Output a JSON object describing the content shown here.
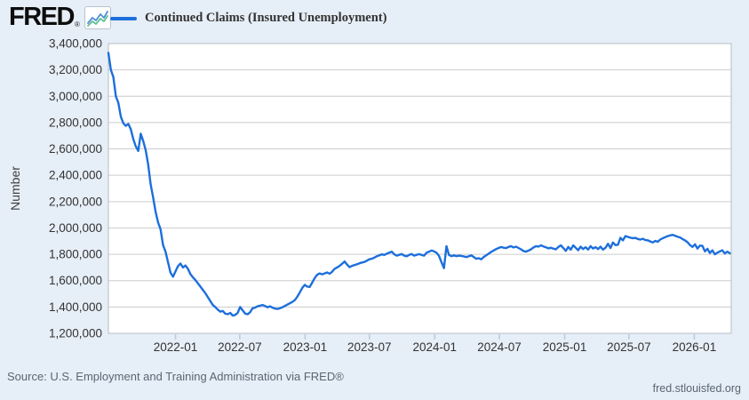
{
  "header": {
    "logo_text": "FRED",
    "registered_mark": "®",
    "logo_icon": "line-chart-icon",
    "legend_label": "Continued Claims (Insured Unemployment)"
  },
  "source": {
    "text": "Source: U.S. Employment and Training Administration via FRED®"
  },
  "footer": {
    "site": "fred.stlouisfed.org"
  },
  "chart_data": {
    "type": "line",
    "title": "Continued Claims (Insured Unemployment)",
    "xlabel": "",
    "ylabel": "Number",
    "ylim": [
      1200000,
      3400000
    ],
    "grid": true,
    "legend_position": "top-left",
    "line_color": "#1d6fdc",
    "plot_background": "#ffffff",
    "page_background": "#e6eef7",
    "frequency": "weekly",
    "x_start": "2021-06-26",
    "x_end": "2026-04-15",
    "y_ticks": [
      {
        "value": 1200000,
        "label": "1,200,000"
      },
      {
        "value": 1400000,
        "label": "1,400,000"
      },
      {
        "value": 1600000,
        "label": "1,600,000"
      },
      {
        "value": 1800000,
        "label": "1,800,000"
      },
      {
        "value": 2000000,
        "label": "2,000,000"
      },
      {
        "value": 2200000,
        "label": "2,200,000"
      },
      {
        "value": 2400000,
        "label": "2,400,000"
      },
      {
        "value": 2600000,
        "label": "2,600,000"
      },
      {
        "value": 2800000,
        "label": "2,800,000"
      },
      {
        "value": 3000000,
        "label": "3,000,000"
      },
      {
        "value": 3200000,
        "label": "3,200,000"
      },
      {
        "value": 3400000,
        "label": "3,400,000"
      }
    ],
    "x_ticks": [
      {
        "date": "2022-01-01",
        "label": "2022-01"
      },
      {
        "date": "2022-07-01",
        "label": "2022-07"
      },
      {
        "date": "2023-01-01",
        "label": "2023-01"
      },
      {
        "date": "2023-07-01",
        "label": "2023-07"
      },
      {
        "date": "2024-01-01",
        "label": "2024-01"
      },
      {
        "date": "2024-07-01",
        "label": "2024-07"
      },
      {
        "date": "2025-01-01",
        "label": "2025-01"
      },
      {
        "date": "2025-07-01",
        "label": "2025-07"
      },
      {
        "date": "2026-01-01",
        "label": "2026-01"
      }
    ],
    "series": [
      {
        "name": "Continued Claims (Insured Unemployment)",
        "values": [
          3330000,
          3200000,
          3145000,
          3000000,
          2950000,
          2845000,
          2795000,
          2775000,
          2790000,
          2750000,
          2675000,
          2620000,
          2585000,
          2715000,
          2660000,
          2590000,
          2480000,
          2330000,
          2230000,
          2120000,
          2040000,
          1990000,
          1870000,
          1820000,
          1740000,
          1660000,
          1630000,
          1670000,
          1710000,
          1730000,
          1700000,
          1715000,
          1690000,
          1650000,
          1625000,
          1605000,
          1580000,
          1555000,
          1530000,
          1505000,
          1475000,
          1445000,
          1415000,
          1400000,
          1380000,
          1365000,
          1370000,
          1350000,
          1345000,
          1355000,
          1335000,
          1340000,
          1355000,
          1400000,
          1375000,
          1350000,
          1345000,
          1360000,
          1390000,
          1395000,
          1405000,
          1410000,
          1415000,
          1408000,
          1398000,
          1405000,
          1395000,
          1388000,
          1385000,
          1390000,
          1398000,
          1408000,
          1418000,
          1428000,
          1438000,
          1452000,
          1478000,
          1510000,
          1545000,
          1568000,
          1555000,
          1552000,
          1585000,
          1620000,
          1645000,
          1655000,
          1648000,
          1655000,
          1662000,
          1652000,
          1668000,
          1690000,
          1700000,
          1712000,
          1728000,
          1745000,
          1722000,
          1702000,
          1712000,
          1718000,
          1725000,
          1732000,
          1738000,
          1742000,
          1752000,
          1762000,
          1766000,
          1775000,
          1785000,
          1792000,
          1800000,
          1795000,
          1805000,
          1812000,
          1820000,
          1800000,
          1790000,
          1796000,
          1802000,
          1790000,
          1785000,
          1795000,
          1802000,
          1790000,
          1796000,
          1801000,
          1795000,
          1790000,
          1812000,
          1820000,
          1829000,
          1822000,
          1812000,
          1788000,
          1740000,
          1695000,
          1862000,
          1795000,
          1786000,
          1792000,
          1786000,
          1790000,
          1788000,
          1784000,
          1779000,
          1786000,
          1792000,
          1780000,
          1766000,
          1770000,
          1762000,
          1780000,
          1792000,
          1805000,
          1818000,
          1829000,
          1840000,
          1848000,
          1855000,
          1850000,
          1847000,
          1856000,
          1862000,
          1852000,
          1858000,
          1848000,
          1838000,
          1825000,
          1820000,
          1828000,
          1838000,
          1852000,
          1862000,
          1858000,
          1868000,
          1860000,
          1853000,
          1845000,
          1850000,
          1843000,
          1838000,
          1855000,
          1868000,
          1848000,
          1826000,
          1856000,
          1835000,
          1868000,
          1850000,
          1831000,
          1858000,
          1840000,
          1854000,
          1836000,
          1862000,
          1844000,
          1854000,
          1840000,
          1858000,
          1836000,
          1850000,
          1880000,
          1848000,
          1890000,
          1870000,
          1872000,
          1925000,
          1906000,
          1938000,
          1932000,
          1926000,
          1922000,
          1925000,
          1916000,
          1912000,
          1918000,
          1908000,
          1906000,
          1898000,
          1890000,
          1902000,
          1895000,
          1912000,
          1922000,
          1930000,
          1938000,
          1944000,
          1948000,
          1940000,
          1933000,
          1928000,
          1916000,
          1906000,
          1892000,
          1870000,
          1856000,
          1876000,
          1844000,
          1866000,
          1864000,
          1822000,
          1842000,
          1810000,
          1830000,
          1800000,
          1812000,
          1822000,
          1830000,
          1806000,
          1820000,
          1808000
        ]
      }
    ]
  }
}
